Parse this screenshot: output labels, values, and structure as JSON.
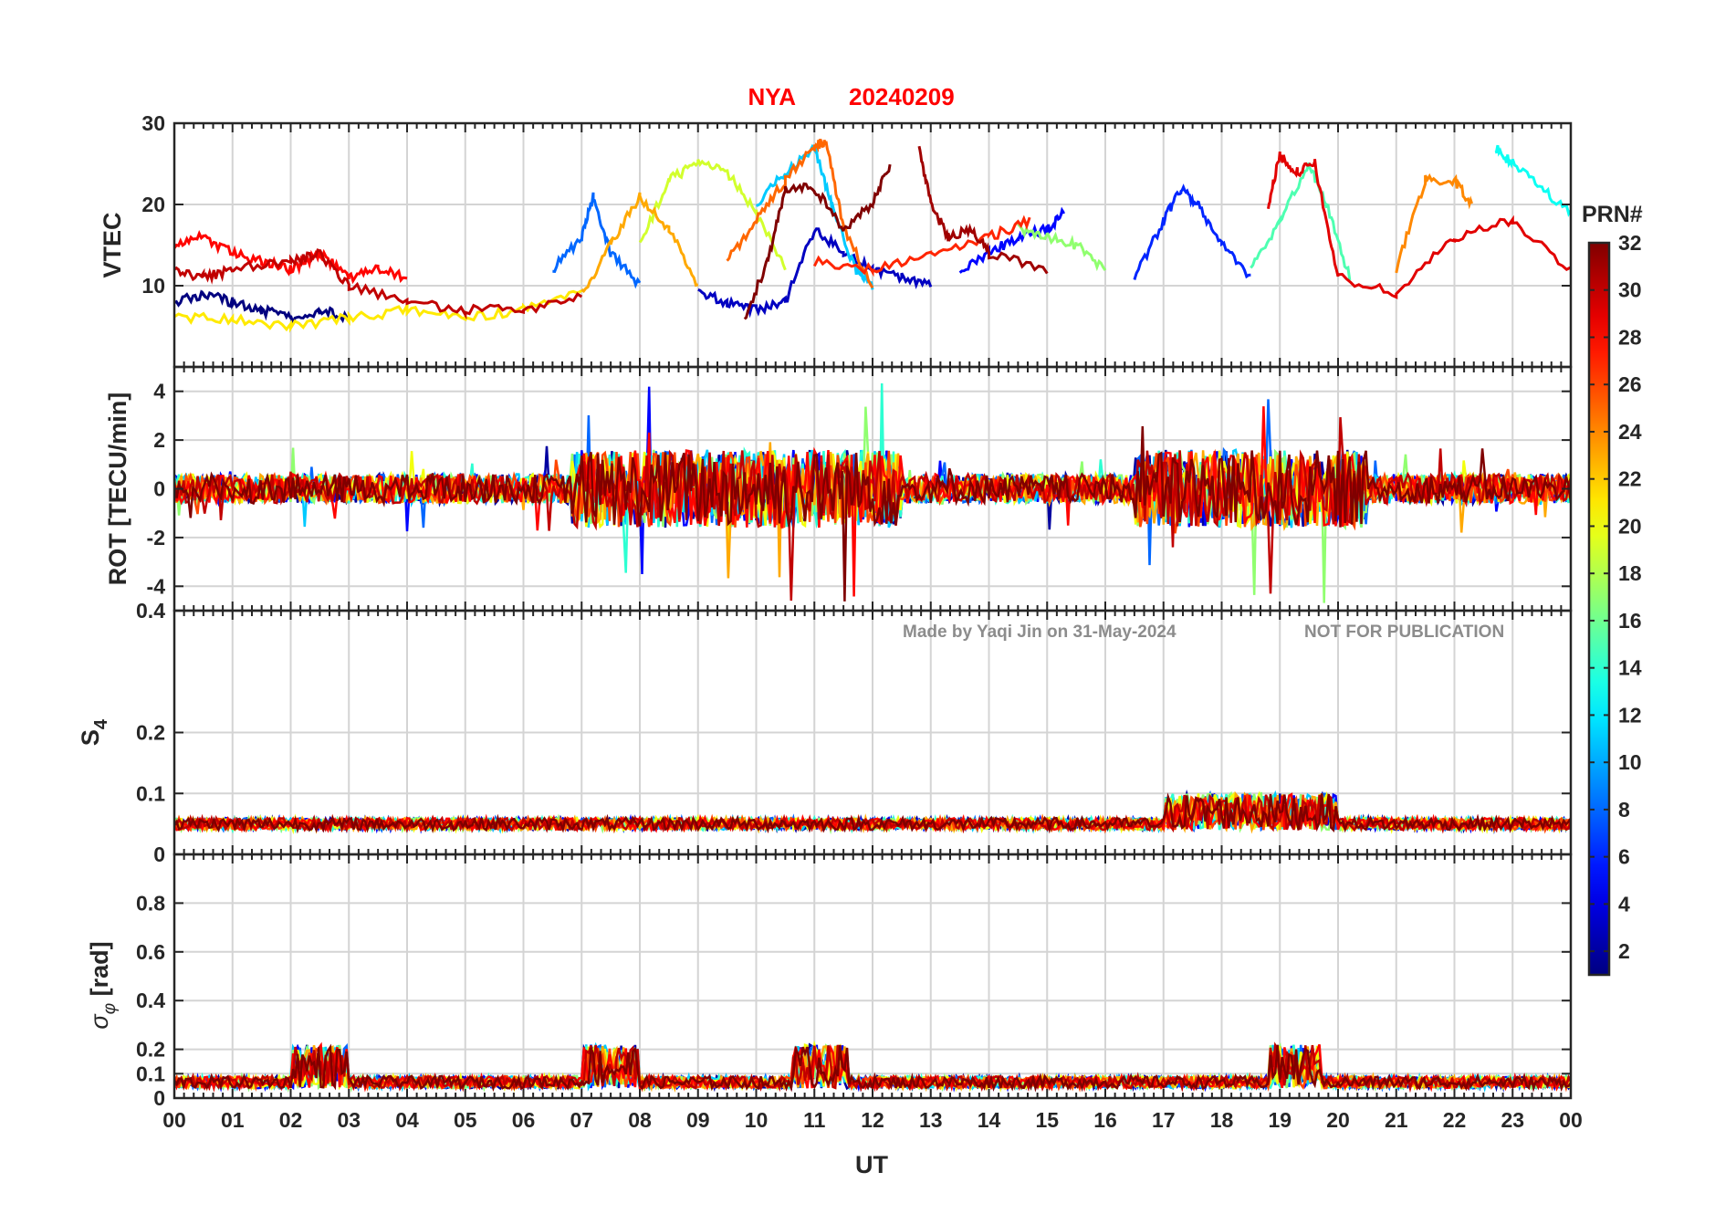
{
  "figure": {
    "title_station": "NYA",
    "title_date": "20240209",
    "title_color": "#ff0000",
    "watermark_author": "Made by Yaqi Jin on 31-May-2024",
    "watermark_notice": "NOT FOR PUBLICATION",
    "watermark_color": "#8c8c8c",
    "xlabel": "UT"
  },
  "chart_data": [
    {
      "type": "line",
      "panel": "VTEC",
      "ylabel": "VTEC",
      "ylim": [
        0,
        30
      ],
      "yticks": [
        10,
        20,
        30
      ],
      "xlim": [
        0,
        24
      ],
      "grid": true,
      "series_note": "one trace per GPS satellite PRN, coloured by PRN (jet colormap)",
      "series": [
        {
          "prn": 1,
          "x": [
            0.0,
            0.5,
            1.0,
            1.5,
            2.0,
            2.5,
            3.0
          ],
          "values": [
            8,
            9,
            8,
            7,
            6,
            7,
            6
          ]
        },
        {
          "prn": 3,
          "x": [
            9.0,
            9.5,
            10.0,
            10.5,
            11.0,
            11.5,
            12.0,
            12.5,
            13.0
          ],
          "values": [
            9,
            8,
            7,
            8,
            17,
            14,
            12,
            11,
            10
          ]
        },
        {
          "prn": 5,
          "x": [
            13.5,
            14.0,
            14.5,
            15.0,
            15.3
          ],
          "values": [
            12,
            14,
            16,
            17,
            19
          ]
        },
        {
          "prn": 6,
          "x": [
            16.5,
            17.0,
            17.3,
            17.6,
            18.0,
            18.5
          ],
          "values": [
            11,
            18,
            22,
            20,
            15,
            11
          ]
        },
        {
          "prn": 8,
          "x": [
            6.5,
            7.0,
            7.2,
            7.5,
            8.0
          ],
          "values": [
            12,
            16,
            21,
            14,
            10
          ]
        },
        {
          "prn": 11,
          "x": [
            10.0,
            10.5,
            11.0,
            11.3,
            11.7,
            12.0
          ],
          "values": [
            20,
            24,
            27,
            20,
            12,
            10
          ]
        },
        {
          "prn": 13,
          "x": [
            22.7,
            23.0,
            23.5,
            24.0
          ],
          "values": [
            27,
            25,
            22,
            19
          ]
        },
        {
          "prn": 15,
          "x": [
            18.5,
            19.0,
            19.5,
            19.8,
            20.2
          ],
          "values": [
            12,
            18,
            25,
            20,
            11
          ]
        },
        {
          "prn": 17,
          "x": [
            14.5,
            15.0,
            15.5,
            16.0
          ],
          "values": [
            17,
            16,
            15,
            12
          ]
        },
        {
          "prn": 19,
          "x": [
            8.0,
            8.5,
            9.0,
            9.5,
            10.0,
            10.5
          ],
          "values": [
            15,
            23,
            25,
            24,
            19,
            12
          ]
        },
        {
          "prn": 21,
          "x": [
            0.0,
            1.0,
            2.0,
            3.0,
            4.0,
            5.0,
            6.0,
            7.0
          ],
          "values": [
            6,
            6,
            5,
            6,
            7,
            6,
            7,
            9
          ]
        },
        {
          "prn": 23,
          "x": [
            7.0,
            7.5,
            8.0,
            8.5,
            9.0
          ],
          "values": [
            9,
            15,
            21,
            17,
            10
          ]
        },
        {
          "prn": 24,
          "x": [
            21.0,
            21.5,
            22.0,
            22.3
          ],
          "values": [
            12,
            23,
            23,
            20
          ]
        },
        {
          "prn": 25,
          "x": [
            9.5,
            10.0,
            10.5,
            11.0,
            11.2,
            11.5,
            12.0
          ],
          "values": [
            13,
            18,
            23,
            27,
            28,
            17,
            10
          ]
        },
        {
          "prn": 27,
          "x": [
            11.0,
            12.0,
            13.0,
            14.0,
            14.7
          ],
          "values": [
            13,
            12,
            14,
            16,
            18
          ]
        },
        {
          "prn": 28,
          "x": [
            0.0,
            0.5,
            1.0,
            1.5,
            2.0,
            2.5,
            3.0,
            3.5,
            4.0
          ],
          "values": [
            15,
            16,
            14,
            13,
            12,
            14,
            11,
            12,
            11
          ]
        },
        {
          "prn": 30,
          "x": [
            0.0,
            0.5,
            1.0,
            2.0,
            2.5,
            3.0,
            4.0,
            5.0,
            6.0,
            7.0
          ],
          "values": [
            12,
            11,
            12,
            13,
            14,
            10,
            8,
            7,
            7,
            9
          ]
        },
        {
          "prn": 32,
          "x": [
            9.8,
            10.2,
            10.5,
            11.0,
            11.5,
            12.0,
            12.3
          ],
          "values": [
            6,
            13,
            22,
            22,
            17,
            20,
            25
          ]
        },
        {
          "prn": 31,
          "x": [
            12.8,
            13.0,
            13.3,
            13.7,
            14.0,
            15.0
          ],
          "values": [
            27,
            20,
            16,
            17,
            14,
            12
          ]
        },
        {
          "prn": 29,
          "x": [
            18.8,
            19.0,
            19.3,
            19.6,
            20.0,
            21.0,
            22.0,
            23.0,
            24.0
          ],
          "values": [
            20,
            26,
            24,
            25,
            11,
            9,
            16,
            18,
            12
          ]
        }
      ]
    },
    {
      "type": "line",
      "panel": "ROT",
      "ylabel": "ROT [TECU/min]",
      "ylim": [
        -5,
        5
      ],
      "yticks": [
        -4,
        -2,
        0,
        2,
        4
      ],
      "xlim": [
        0,
        24
      ],
      "grid": true
    },
    {
      "type": "line",
      "panel": "S4",
      "ylabel": "S4",
      "ylim": [
        0,
        0.4
      ],
      "yticks": [
        0,
        0.1,
        0.2,
        0.4
      ],
      "xlim": [
        0,
        24
      ],
      "grid": true
    },
    {
      "type": "line",
      "panel": "sigma_phi",
      "ylabel": "σφ [rad]",
      "ylim": [
        0,
        1
      ],
      "yticks": [
        0,
        0.1,
        0.2,
        0.4,
        0.6,
        0.8
      ],
      "xlim": [
        0,
        24
      ],
      "xticks": [
        "00",
        "01",
        "02",
        "03",
        "04",
        "05",
        "06",
        "07",
        "08",
        "09",
        "10",
        "11",
        "12",
        "13",
        "14",
        "15",
        "16",
        "17",
        "18",
        "19",
        "20",
        "21",
        "22",
        "23",
        "00"
      ],
      "grid": true
    }
  ],
  "colorbar": {
    "label": "PRN#",
    "range": [
      1,
      32
    ],
    "ticks": [
      2,
      4,
      6,
      8,
      10,
      12,
      14,
      16,
      18,
      20,
      22,
      24,
      26,
      28,
      30,
      32
    ],
    "colormap": "jet"
  }
}
